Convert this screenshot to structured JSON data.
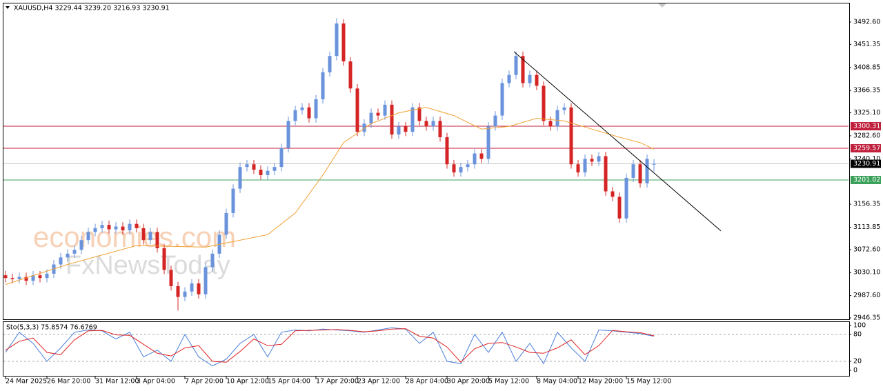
{
  "chart_data": {
    "type": "candlestick",
    "title": "XAUUSD,H4  3229.44 3239.20 3216.93 3230.91",
    "up_color": "#6a93dc",
    "down_color": "#d42424",
    "open": [
      3025,
      3020,
      3018,
      3022,
      3015,
      3025,
      3020,
      3028,
      3045,
      3058,
      3065,
      3072,
      3090,
      3105,
      3112,
      3118,
      3110,
      3115,
      3108,
      3120,
      3112,
      3090,
      3105,
      3075,
      3035,
      3005,
      2985,
      2995,
      3010,
      2990,
      3040,
      3065,
      3100,
      3140,
      3185,
      3225,
      3230,
      3220,
      3210,
      3218,
      3225,
      3260,
      3310,
      3330,
      3335,
      3315,
      3350,
      3400,
      3430,
      3490,
      3420,
      3370,
      3290,
      3305,
      3325,
      3320,
      3340,
      3285,
      3300,
      3290,
      3335,
      3310,
      3300,
      3310,
      3280,
      3230,
      3215,
      3225,
      3230,
      3250,
      3240,
      3300,
      3320,
      3380,
      3395,
      3430,
      3380,
      3395,
      3375,
      3310,
      3300,
      3330,
      3335,
      3230,
      3215,
      3240,
      3235,
      3245,
      3180,
      3170,
      3130,
      3205,
      3230,
      3195,
      3229.44
    ],
    "high": [
      3033,
      3028,
      3030,
      3030,
      3033,
      3033,
      3036,
      3053,
      3066,
      3073,
      3080,
      3098,
      3113,
      3120,
      3126,
      3126,
      3123,
      3123,
      3128,
      3128,
      3120,
      3113,
      3113,
      3083,
      3043,
      3013,
      3003,
      3018,
      3018,
      3048,
      3073,
      3108,
      3148,
      3193,
      3233,
      3238,
      3238,
      3228,
      3226,
      3233,
      3268,
      3318,
      3338,
      3343,
      3343,
      3358,
      3408,
      3438,
      3500,
      3498,
      3428,
      3378,
      3313,
      3333,
      3333,
      3348,
      3348,
      3308,
      3308,
      3343,
      3343,
      3318,
      3318,
      3318,
      3288,
      3238,
      3233,
      3238,
      3258,
      3258,
      3308,
      3328,
      3388,
      3403,
      3438,
      3438,
      3403,
      3403,
      3383,
      3318,
      3338,
      3343,
      3343,
      3238,
      3248,
      3248,
      3253,
      3253,
      3188,
      3178,
      3213,
      3238,
      3238,
      3248,
      3239.2
    ],
    "low": [
      3012,
      3010,
      3010,
      3007,
      3007,
      3012,
      3012,
      3020,
      3037,
      3050,
      3057,
      3064,
      3082,
      3097,
      3104,
      3102,
      3102,
      3100,
      3100,
      3104,
      3082,
      3082,
      3067,
      3027,
      2997,
      2960,
      2977,
      2987,
      2982,
      2982,
      3032,
      3057,
      3092,
      3132,
      3177,
      3217,
      3212,
      3202,
      3202,
      3210,
      3217,
      3252,
      3302,
      3322,
      3307,
      3307,
      3342,
      3392,
      3422,
      3412,
      3362,
      3282,
      3282,
      3297,
      3312,
      3312,
      3277,
      3277,
      3282,
      3282,
      3302,
      3292,
      3292,
      3272,
      3222,
      3207,
      3207,
      3217,
      3222,
      3232,
      3232,
      3292,
      3312,
      3372,
      3387,
      3372,
      3372,
      3367,
      3302,
      3292,
      3292,
      3322,
      3222,
      3207,
      3207,
      3227,
      3227,
      3172,
      3162,
      3122,
      3122,
      3197,
      3187,
      3187,
      3216.93
    ],
    "close": [
      3020,
      3018,
      3022,
      3015,
      3025,
      3020,
      3028,
      3045,
      3058,
      3065,
      3072,
      3090,
      3105,
      3112,
      3118,
      3110,
      3115,
      3108,
      3120,
      3112,
      3090,
      3105,
      3075,
      3035,
      3005,
      2985,
      2995,
      3010,
      2990,
      3040,
      3065,
      3100,
      3140,
      3185,
      3225,
      3230,
      3220,
      3210,
      3218,
      3225,
      3260,
      3310,
      3330,
      3335,
      3315,
      3350,
      3400,
      3430,
      3490,
      3420,
      3370,
      3290,
      3305,
      3325,
      3320,
      3340,
      3285,
      3300,
      3290,
      3335,
      3310,
      3300,
      3310,
      3280,
      3230,
      3215,
      3225,
      3230,
      3250,
      3240,
      3300,
      3320,
      3380,
      3395,
      3430,
      3380,
      3395,
      3375,
      3310,
      3300,
      3330,
      3335,
      3230,
      3215,
      3240,
      3235,
      3245,
      3180,
      3170,
      3130,
      3205,
      3230,
      3195,
      3240,
      3230.91
    ],
    "xlim": [
      -0.3,
      122.2
    ],
    "ylim": [
      2943.8,
      3527.0
    ],
    "yticks": [
      {
        "value": 3492.6,
        "label": "3492.60"
      },
      3451.35,
      {
        "value": 3408.85,
        "label": "3408.85"
      },
      3366.35,
      {
        "value": 3325.1,
        "label": "3325.10"
      },
      {
        "value": 3282.6,
        "label": "3282.60"
      },
      {
        "value": 3240.1,
        "label": "3240.10"
      },
      3156.35,
      3113.85,
      {
        "value": 3072.6,
        "label": "3072.60"
      },
      {
        "value": 3030.1,
        "label": "3030.10"
      },
      {
        "value": 2987.6,
        "label": "2987.60"
      },
      2946.35
    ],
    "xticks": [
      {
        "value": 0,
        "label": "24 Mar 2025"
      },
      {
        "value": 6,
        "label": "26 Mar 20:00"
      },
      {
        "value": 13,
        "label": "31 Mar 12:00"
      },
      {
        "value": 19,
        "label": "3 Apr 04:00"
      },
      {
        "value": 26,
        "label": "7 Apr 20:00"
      },
      {
        "value": 32,
        "label": "10 Apr 12:00"
      },
      {
        "value": 38,
        "label": "15 Apr 04:00"
      },
      {
        "value": 45,
        "label": "17 Apr 20:00"
      },
      {
        "value": 51,
        "label": "23 Apr 12:00"
      },
      {
        "value": 58,
        "label": "28 Apr 04:00"
      },
      {
        "value": 64,
        "label": "30 Apr 20:00"
      },
      {
        "value": 70,
        "label": "5 May 12:00"
      },
      {
        "value": 77,
        "label": "8 May 04:00"
      },
      {
        "value": 83,
        "label": "12 May 20:00"
      },
      {
        "value": 90,
        "label": "15 May 12:00"
      }
    ],
    "moving_average": {
      "color": "#f0a030",
      "x": [
        0,
        9,
        19,
        29,
        38,
        42,
        46,
        49,
        53,
        57,
        61,
        65,
        69,
        73,
        77,
        81,
        85,
        89,
        92,
        94
      ],
      "values": [
        3008,
        3045,
        3080,
        3077,
        3100,
        3140,
        3210,
        3270,
        3305,
        3325,
        3335,
        3320,
        3295,
        3300,
        3315,
        3310,
        3295,
        3280,
        3270,
        3258
      ]
    },
    "trendline": {
      "color": "#000000",
      "x": [
        73.7,
        103.7
      ],
      "values": [
        3438,
        3107
      ]
    },
    "levels": [
      {
        "value": 3300.31,
        "color": "#c0203c",
        "label_bg": "#c0203c"
      },
      {
        "value": 3259.57,
        "color": "#c0203c",
        "label_bg": "#c0203c"
      },
      {
        "value": 3230.91,
        "color": "#c8c8c8",
        "label_bg": "#000000"
      },
      {
        "value": 3201.02,
        "color": "#3aa05a",
        "label_bg": "#3aa05a"
      }
    ],
    "watermark": [
      "economies.com",
      "FxNewsToday"
    ],
    "indicator": {
      "title": "Sto(5,3,3) 75.8574 76.6769",
      "ylim": [
        0,
        100
      ],
      "yticks": [
        100,
        80,
        20,
        0
      ],
      "levels": [
        80,
        20
      ],
      "x": [
        0,
        2,
        4,
        6,
        8,
        10,
        12,
        14,
        16,
        18,
        20,
        22,
        24,
        26,
        28,
        30,
        32,
        34,
        36,
        38,
        40,
        42,
        44,
        46,
        48,
        50,
        52,
        54,
        56,
        58,
        60,
        62,
        64,
        66,
        68,
        70,
        72,
        74,
        76,
        78,
        80,
        82,
        84,
        86,
        88,
        90,
        92,
        94
      ],
      "series": [
        {
          "color": "#4a7fd8",
          "values": [
            40,
            85,
            60,
            20,
            50,
            85,
            90,
            88,
            70,
            85,
            30,
            45,
            20,
            80,
            30,
            10,
            25,
            60,
            80,
            30,
            85,
            90,
            88,
            92,
            90,
            88,
            85,
            90,
            95,
            92,
            60,
            85,
            20,
            15,
            80,
            40,
            85,
            20,
            60,
            15,
            85,
            50,
            20,
            90,
            88,
            85,
            82,
            76
          ]
        },
        {
          "color": "#e02020",
          "values": [
            45,
            65,
            72,
            40,
            35,
            68,
            88,
            89,
            79,
            78,
            58,
            38,
            32,
            50,
            55,
            20,
            18,
            42,
            70,
            55,
            58,
            88,
            89,
            90,
            91,
            89,
            86,
            88,
            92,
            93,
            76,
            72,
            52,
            18,
            48,
            60,
            62,
            52,
            40,
            38,
            50,
            68,
            35,
            55,
            89,
            86,
            84,
            77
          ]
        }
      ]
    }
  }
}
